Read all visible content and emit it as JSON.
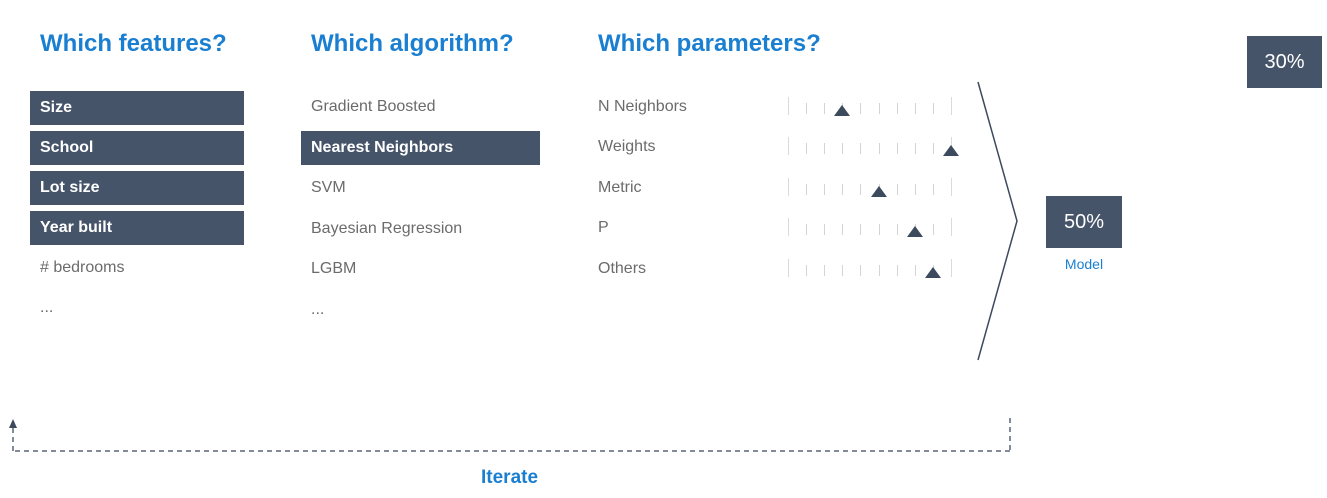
{
  "headings": {
    "features": "Which features?",
    "algorithm": "Which algorithm?",
    "parameters": "Which parameters?"
  },
  "features": [
    {
      "label": "Size",
      "selected": true
    },
    {
      "label": "School",
      "selected": true
    },
    {
      "label": "Lot size",
      "selected": true
    },
    {
      "label": "Year built",
      "selected": true
    },
    {
      "label": "# bedrooms",
      "selected": false
    },
    {
      "label": "...",
      "selected": false
    }
  ],
  "algorithms": [
    {
      "label": "Gradient Boosted",
      "selected": false
    },
    {
      "label": "Nearest Neighbors",
      "selected": true
    },
    {
      "label": "SVM",
      "selected": false
    },
    {
      "label": "Bayesian Regression",
      "selected": false
    },
    {
      "label": "LGBM",
      "selected": false
    },
    {
      "label": "...",
      "selected": false
    }
  ],
  "parameters": [
    {
      "label": "N Neighbors",
      "level": 0.33
    },
    {
      "label": "Weights",
      "level": 1.0
    },
    {
      "label": "Metric",
      "level": 0.56
    },
    {
      "label": "P",
      "level": 0.78
    },
    {
      "label": "Others",
      "level": 0.89
    }
  ],
  "scores": {
    "previous": "30%",
    "current": "50%"
  },
  "model_label": "Model",
  "iterate_label": "Iterate",
  "colors": {
    "accent": "#1a7fd1",
    "selected_fill": "#46546a",
    "thumb": "#3d4a5e"
  }
}
